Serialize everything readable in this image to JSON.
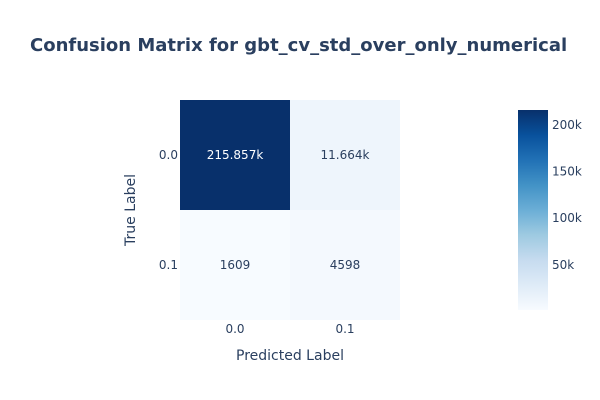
{
  "chart_data": {
    "type": "heatmap",
    "title": "Confusion Matrix for gbt_cv_std_over_only_numerical",
    "xlabel": "Predicted Label",
    "ylabel": "True Label",
    "x_categories": [
      "0.0",
      "0.1"
    ],
    "y_categories": [
      "0.0",
      "0.1"
    ],
    "values": [
      [
        215857,
        11664
      ],
      [
        1609,
        4598
      ]
    ],
    "cell_labels": [
      [
        "215.857k",
        "11.664k"
      ],
      [
        "1609",
        "4598"
      ]
    ],
    "colorscale": [
      "#f7fbff",
      "#deebf7",
      "#c6dbef",
      "#9ecae1",
      "#6baed6",
      "#4292c6",
      "#2171b5",
      "#08519c",
      "#08306b"
    ],
    "colorbar": {
      "min": 1609,
      "max": 215857,
      "ticks": [
        50000,
        100000,
        150000,
        200000
      ],
      "tick_labels": [
        "50k",
        "100k",
        "150k",
        "200k"
      ]
    },
    "grid": false,
    "legend": "colorbar-right"
  }
}
